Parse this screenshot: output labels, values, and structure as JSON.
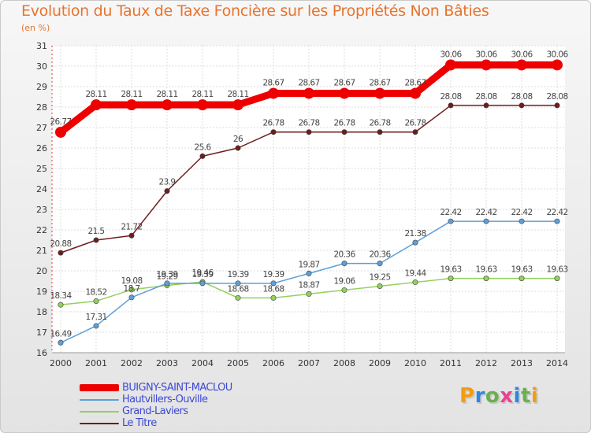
{
  "chart_data": {
    "type": "line",
    "title": "Evolution du Taux de Taxe Foncière sur les Propriétés Non Bâties",
    "subtitle": "(en %)",
    "categories": [
      "2000",
      "2001",
      "2002",
      "2003",
      "2004",
      "2005",
      "2006",
      "2007",
      "2008",
      "2009",
      "2010",
      "2011",
      "2012",
      "2013",
      "2014"
    ],
    "ylim": [
      16,
      31
    ],
    "yticks": [
      "16",
      "17",
      "18",
      "19",
      "20",
      "21",
      "22",
      "23",
      "24",
      "25",
      "26",
      "27",
      "28",
      "29",
      "30",
      "31"
    ],
    "series": [
      {
        "name": "Le Titre",
        "color": "#6e1c1c",
        "values": [
          20.88,
          21.5,
          21.72,
          23.9,
          25.6,
          26,
          26.78,
          26.78,
          26.78,
          26.78,
          26.78,
          28.08,
          28.08,
          28.08,
          28.08
        ],
        "labels": [
          "20.88",
          "21.5",
          "21.72",
          "23.9",
          "25.6",
          "26",
          "26.78",
          "26.78",
          "26.78",
          "26.78",
          "26.78",
          "28.08",
          "28.08",
          "28.08",
          "28.08"
        ]
      },
      {
        "name": "Grand-Laviers",
        "color": "#93d05c",
        "values": [
          18.34,
          18.52,
          19.08,
          19.29,
          19.46,
          18.68,
          18.68,
          18.87,
          19.06,
          19.25,
          19.44,
          19.63,
          19.63,
          19.63,
          19.63
        ],
        "labels": [
          "18.34",
          "18.52",
          "19.08",
          "19.29",
          "19.46",
          "18.68",
          "18.68",
          "18.87",
          "19.06",
          "19.25",
          "19.44",
          "19.63",
          "19.63",
          "19.63",
          "19.63"
        ]
      },
      {
        "name": "Hautvillers-Ouville",
        "color": "#5e9fd8",
        "values": [
          16.49,
          17.31,
          18.7,
          19.39,
          19.39,
          19.39,
          19.39,
          19.87,
          20.36,
          20.36,
          21.38,
          22.42,
          22.42,
          22.42,
          22.42
        ],
        "labels": [
          "16.49",
          "17.31",
          "18.7",
          "19.39",
          "19.39",
          "19.39",
          "19.39",
          "19.87",
          "20.36",
          "20.36",
          "21.38",
          "22.42",
          "22.42",
          "22.42",
          "22.42"
        ]
      },
      {
        "name": "BUIGNY-SAINT-MACLOU",
        "color": "#ee0000",
        "values": [
          26.77,
          28.11,
          28.11,
          28.11,
          28.11,
          28.11,
          28.67,
          28.67,
          28.67,
          28.67,
          28.67,
          30.06,
          30.06,
          30.06,
          30.06
        ],
        "labels": [
          "26.77",
          "28.11",
          "28.11",
          "28.11",
          "28.11",
          "28.11",
          "28.67",
          "28.67",
          "28.67",
          "28.67",
          "28.67",
          "30.06",
          "30.06",
          "30.06",
          "30.06"
        ]
      }
    ],
    "legend": [
      "BUIGNY-SAINT-MACLOU",
      "Hautvillers-Ouville",
      "Grand-Laviers",
      "Le Titre"
    ],
    "legend_position": "bottom-left",
    "grid": true
  },
  "brand": {
    "text": "Proxiti",
    "letters": [
      {
        "ch": "P",
        "color": "#f39c12"
      },
      {
        "ch": "r",
        "color": "#2e86de"
      },
      {
        "ch": "o",
        "color": "#6ab04c"
      },
      {
        "ch": "x",
        "color": "#e84393"
      },
      {
        "ch": "i",
        "color": "#2e86de"
      },
      {
        "ch": "t",
        "color": "#6ab04c"
      },
      {
        "ch": "i",
        "color": "#f39c12"
      }
    ]
  }
}
